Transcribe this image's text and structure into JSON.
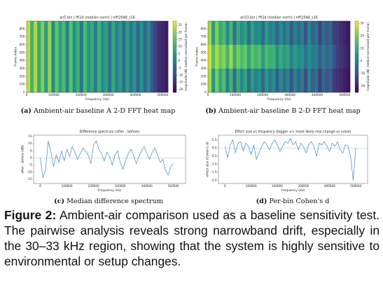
{
  "chart_data": [
    {
      "type": "heatmap",
      "title": "air5.bin | fft2d (median norm) | nfft2048_s16",
      "x_label": "Frequency (Hz)",
      "y_label": "Frame index",
      "colorbar_label": "magnitude (dB, median-normalized per frame)",
      "xlim": [
        0,
        520000
      ],
      "xticks": [
        0,
        100000,
        200000,
        300000,
        400000,
        500000
      ],
      "ylim": [
        0,
        900
      ],
      "yticks": [
        0,
        100,
        200,
        300,
        400,
        500,
        600,
        700,
        800
      ],
      "clim": [
        -22,
        28
      ],
      "cticks": [
        -20,
        -15,
        -10,
        -5,
        0,
        5,
        10,
        15,
        20,
        25
      ],
      "y_bins": [
        0,
        900
      ],
      "z": [
        [
          24,
          10,
          22,
          8,
          18,
          5,
          20,
          2,
          15,
          6,
          12,
          0,
          14,
          3,
          10,
          -2,
          12,
          4,
          8,
          -1,
          10,
          2,
          6,
          -3,
          8,
          0,
          5,
          -4,
          6,
          -2,
          4,
          -6,
          3,
          -5,
          2,
          -8,
          -12,
          -15,
          -16,
          -18
        ]
      ]
    },
    {
      "type": "heatmap",
      "title": "air33.bin | fft2d (median norm) | nfft2048_s16",
      "x_label": "Frequency (Hz)",
      "y_label": "Frame index",
      "colorbar_label": "magnitude (dB, median-normalized per frame)",
      "xlim": [
        0,
        520000
      ],
      "xticks": [
        0,
        100000,
        200000,
        300000,
        400000,
        500000
      ],
      "ylim": [
        0,
        900
      ],
      "yticks": [
        0,
        100,
        200,
        300,
        400,
        500,
        600,
        700,
        800
      ],
      "clim": [
        -25,
        32
      ],
      "cticks": [
        -20,
        -10,
        0,
        10,
        20,
        30
      ],
      "y_bins": [
        0,
        300,
        600,
        900
      ],
      "z": [
        [
          25,
          5,
          20,
          8,
          15,
          0,
          12,
          -4,
          10,
          2,
          8,
          -5,
          6,
          0,
          4,
          -6,
          5,
          -2,
          3,
          -8,
          2,
          -5,
          0,
          -10,
          1,
          -6,
          -2,
          -12,
          0,
          -8,
          -4,
          -14,
          -6,
          -10,
          -8,
          -15,
          -16,
          -18,
          -20,
          -22
        ],
        [
          28,
          15,
          25,
          18,
          22,
          12,
          24,
          10,
          20,
          14,
          18,
          8,
          16,
          12,
          15,
          6,
          14,
          10,
          12,
          4,
          10,
          6,
          8,
          0,
          6,
          2,
          4,
          -4,
          3,
          -2,
          0,
          -8,
          -2,
          -6,
          -4,
          -10,
          -14,
          -16,
          -18,
          -20
        ],
        [
          24,
          6,
          21,
          9,
          14,
          2,
          13,
          -3,
          9,
          3,
          7,
          -4,
          7,
          1,
          3,
          -5,
          6,
          -1,
          2,
          -7,
          3,
          -4,
          1,
          -9,
          0,
          -5,
          -1,
          -11,
          1,
          -7,
          -3,
          -13,
          -5,
          -9,
          -7,
          -14,
          -15,
          -17,
          -19,
          -21
        ]
      ]
    },
    {
      "type": "line",
      "title": "Difference spectrum (after - before)",
      "x_label": "Frequency (Hz)",
      "y_label": "after - before (dB)",
      "xlim": [
        -25000,
        545000
      ],
      "xticks": [
        0,
        100000,
        200000,
        300000,
        400000,
        500000
      ],
      "ylim": [
        -18,
        16
      ],
      "yticks": [
        -15,
        -10,
        -5,
        0,
        5,
        10,
        15
      ],
      "color": "#1f77b4",
      "reference_line": 0,
      "x": [
        0,
        10000,
        20000,
        30000,
        40000,
        50000,
        60000,
        70000,
        80000,
        90000,
        100000,
        110000,
        120000,
        130000,
        140000,
        150000,
        160000,
        170000,
        180000,
        190000,
        200000,
        210000,
        220000,
        230000,
        240000,
        250000,
        260000,
        270000,
        280000,
        290000,
        300000,
        310000,
        320000,
        330000,
        340000,
        350000,
        360000,
        370000,
        380000,
        390000,
        400000,
        410000,
        420000,
        430000,
        440000,
        450000,
        460000,
        470000,
        480000,
        490000,
        500000
      ],
      "values": [
        0,
        -14,
        -8,
        12,
        4,
        -6,
        2,
        -3,
        5,
        -2,
        6,
        1,
        8,
        4,
        -1,
        3,
        7,
        5,
        2,
        -4,
        9,
        12,
        6,
        3,
        -2,
        4,
        1,
        -5,
        2,
        5,
        -3,
        -8,
        -2,
        3,
        6,
        2,
        -4,
        1,
        5,
        8,
        3,
        -1,
        4,
        7,
        2,
        -3,
        -1,
        -9,
        -12,
        -6,
        -4
      ]
    },
    {
      "type": "line",
      "title": "Effect size vs frequency (bigger => more likely real change vs noise)",
      "x_label": "Frequency (Hz)",
      "y_label": "effect size (Cohen's d)",
      "xlim": [
        -25000,
        545000
      ],
      "xticks": [
        0,
        100000,
        200000,
        300000,
        400000,
        500000
      ],
      "ylim": [
        -2.2,
        0.8
      ],
      "yticks": [
        0.5,
        {
          "value": 0,
          "label": "0.0"
        },
        -0.5,
        {
          "value": -1,
          "label": "-1.0"
        },
        -1.5,
        {
          "value": -2,
          "label": "-2.0"
        }
      ],
      "color": "#1f77b4",
      "reference_line": 0,
      "x": [
        0,
        10000,
        20000,
        30000,
        40000,
        50000,
        60000,
        70000,
        80000,
        90000,
        100000,
        110000,
        120000,
        130000,
        140000,
        150000,
        160000,
        170000,
        180000,
        190000,
        200000,
        210000,
        220000,
        230000,
        240000,
        250000,
        260000,
        270000,
        280000,
        290000,
        300000,
        310000,
        320000,
        330000,
        340000,
        350000,
        360000,
        370000,
        380000,
        390000,
        400000,
        410000,
        420000,
        430000,
        440000,
        450000,
        460000,
        470000,
        480000,
        490000,
        500000
      ],
      "values": [
        0.1,
        -0.6,
        0.2,
        0.5,
        -0.3,
        0.3,
        0.4,
        -0.2,
        0.3,
        0.1,
        -0.4,
        0.2,
        -0.7,
        -0.3,
        0.1,
        0.4,
        0.2,
        -0.1,
        0.3,
        0.5,
        0.2,
        -0.2,
        0.1,
        0.4,
        0.3,
        0.6,
        0.2,
        0.4,
        -0.1,
        0.3,
        0.1,
        -0.3,
        0.2,
        0.4,
        0.1,
        -0.5,
        0.3,
        0.2,
        0.4,
        0.1,
        -0.2,
        0.3,
        0.1,
        0.4,
        -0.1,
        -0.3,
        0.2,
        0.1,
        -0.5,
        -2.0,
        0.0
      ]
    }
  ],
  "subcaptions": [
    {
      "label": "(a)",
      "text": "Ambient-air baseline A 2-D FFT heat map"
    },
    {
      "label": "(b)",
      "text": "Ambient-air baseline B 2-D FFT heat map"
    },
    {
      "label": "(c)",
      "text": "Median difference spectrum"
    },
    {
      "label": "(d)",
      "text": "Per-bin Cohen's d"
    }
  ],
  "figure_caption": {
    "label": "Figure 2:",
    "text": "Ambient-air comparison used as a baseline sensitivity test. The pairwise analysis reveals strong narrowband drift, especially in the 30–33 kHz region, showing that the system is highly sensitive to environmental or setup changes."
  }
}
